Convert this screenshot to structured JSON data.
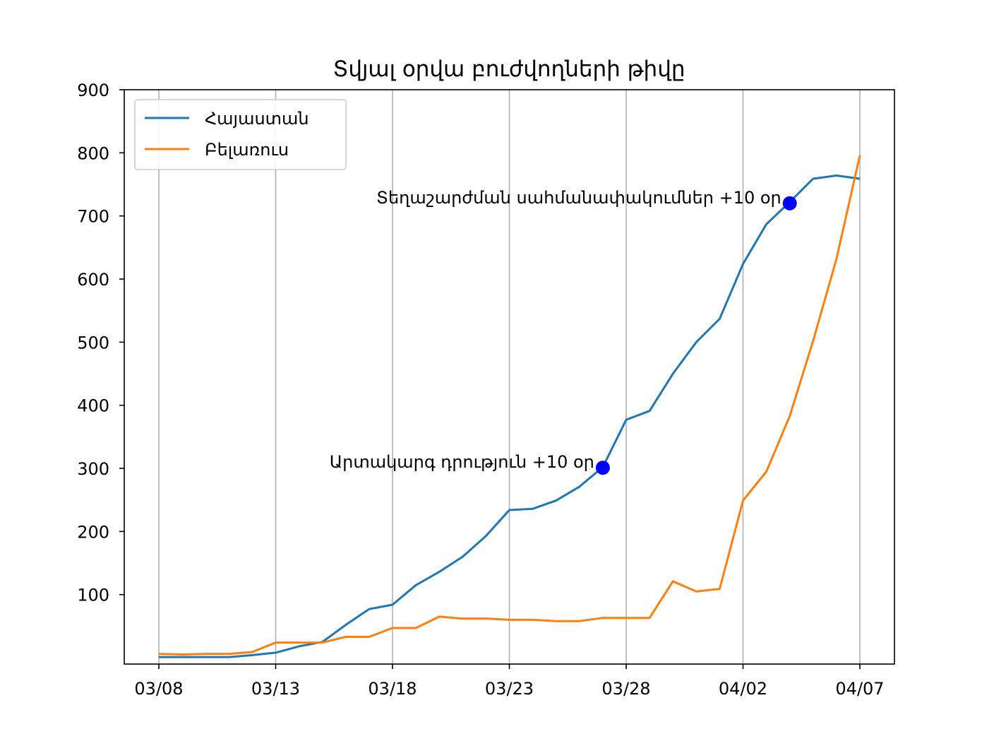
{
  "chart_data": {
    "type": "line",
    "title": "Տվյալ օրվա բուժվողների թիվը",
    "xlabel": "",
    "ylabel": "",
    "x": [
      "03/08",
      "03/09",
      "03/10",
      "03/11",
      "03/12",
      "03/13",
      "03/14",
      "03/15",
      "03/16",
      "03/17",
      "03/18",
      "03/19",
      "03/20",
      "03/21",
      "03/22",
      "03/23",
      "03/24",
      "03/25",
      "03/26",
      "03/27",
      "03/28",
      "03/29",
      "03/30",
      "03/31",
      "04/01",
      "04/02",
      "04/03",
      "04/04",
      "04/05",
      "04/06",
      "04/07"
    ],
    "xticks": [
      "03/08",
      "03/13",
      "03/18",
      "03/23",
      "03/28",
      "04/02",
      "04/07"
    ],
    "yticks": [
      100,
      200,
      300,
      400,
      500,
      600,
      700,
      800,
      900
    ],
    "ylim": [
      0,
      900
    ],
    "grid": "vertical",
    "legend_position": "top-left",
    "series": [
      {
        "name": "Հայաստան",
        "color": "#1f77b4",
        "values": [
          1,
          1,
          1,
          1,
          4,
          8,
          18,
          25,
          52,
          77,
          84,
          115,
          136,
          160,
          193,
          234,
          236,
          249,
          271,
          302,
          377,
          391,
          450,
          500,
          537,
          624,
          687,
          722,
          759,
          764,
          759
        ]
      },
      {
        "name": "Բելառուս",
        "color": "#ff7f0e",
        "values": [
          6,
          5,
          6,
          6,
          9,
          24,
          24,
          24,
          33,
          33,
          47,
          47,
          65,
          62,
          62,
          60,
          60,
          58,
          58,
          63,
          63,
          63,
          121,
          105,
          109,
          249,
          295,
          383,
          502,
          632,
          796
        ]
      }
    ],
    "annotations": [
      {
        "label": "Արտակարգ դրություն +10 օր",
        "x": "03/27",
        "y": 301,
        "color": "#0000ff"
      },
      {
        "label": "Տեղաշարժման սահմանափակումներ +10 օր",
        "x": "04/04",
        "y": 720,
        "color": "#0000ff"
      }
    ]
  }
}
